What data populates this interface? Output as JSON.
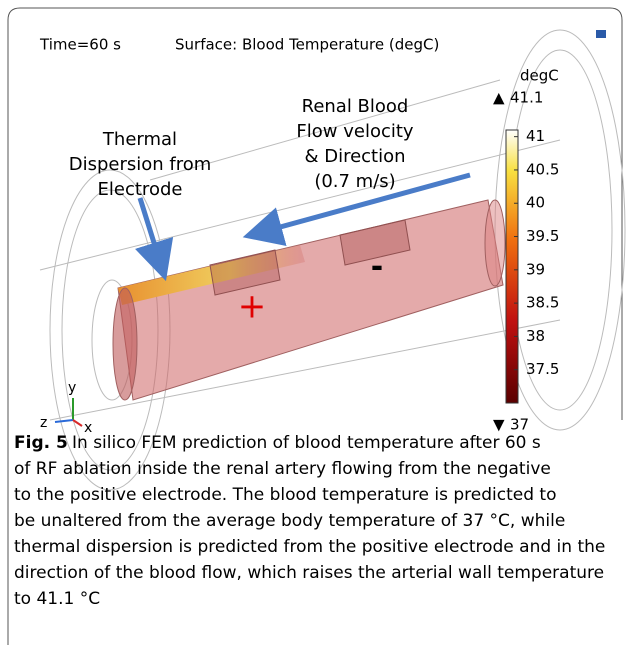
{
  "figure": {
    "time_label": "Time=60 s",
    "surface_label": "Surface: Blood Temperature (degC)",
    "unit": "degC",
    "max": 41.1,
    "min": 37,
    "colorbar_ticks": [
      41,
      40.5,
      40,
      39.5,
      39,
      38.5,
      38,
      37.5
    ],
    "annotation_left": [
      "Thermal",
      "Dispersion from",
      "Electrode"
    ],
    "annotation_right": [
      "Renal Blood",
      "Flow velocity",
      "& Direction",
      "(0.7 m/s)"
    ],
    "plus": "+",
    "minus": "-",
    "axes": {
      "y": "y",
      "z": "z",
      "x": "x"
    }
  },
  "caption": {
    "label": "Fig. 5",
    "lines": [
      "In silico FEM prediction of blood temperature after 60 s",
      "of RF ablation inside the renal artery flowing from the negative",
      "to the positive electrode. The blood temperature is predicted to",
      "be unaltered from the average body temperature of 37 °C, while",
      "thermal dispersion is predicted from the positive electrode and in the",
      "direction of the blood flow, which raises the arterial wall temperature",
      "to 41.1 °C"
    ]
  }
}
